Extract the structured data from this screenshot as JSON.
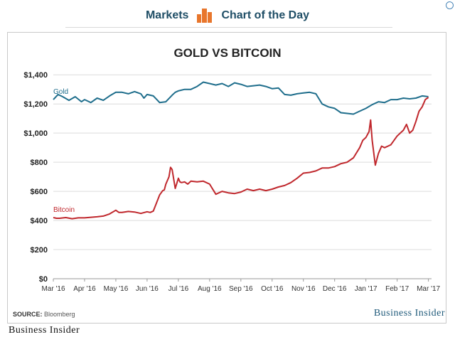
{
  "header": {
    "left_label": "Markets",
    "right_label": "Chart of the Day",
    "icon": "bar-chart-icon"
  },
  "source": {
    "prefix": "SOURCE:",
    "text": "Bloomberg"
  },
  "brand": {
    "inline": "Business Insider",
    "footer": "Business Insider"
  },
  "colors": {
    "gold": "#1f6e8c",
    "bitcoin": "#c0282d",
    "header_accent": "#e8762c"
  },
  "chart_data": {
    "type": "line",
    "title": "GOLD VS BITCOIN",
    "x_ticks": [
      "Mar '16",
      "Apr '16",
      "May '16",
      "Jun '16",
      "Jul '16",
      "Aug '16",
      "Sep '16",
      "Oct '16",
      "Nov '16",
      "Dec '16",
      "Jan '17",
      "Feb '17",
      "Mar '17"
    ],
    "y_ticks": [
      "$0",
      "$200",
      "$400",
      "$600",
      "$800",
      "$1,000",
      "$1,200",
      "$1,400"
    ],
    "ylim": [
      0,
      1450
    ],
    "xlim": [
      0,
      12.1
    ],
    "grid": true,
    "series": [
      {
        "name": "Gold",
        "color": "#1f6e8c",
        "x": [
          0,
          0.15,
          0.3,
          0.5,
          0.7,
          0.9,
          1.0,
          1.2,
          1.4,
          1.6,
          1.8,
          2.0,
          2.2,
          2.4,
          2.6,
          2.8,
          2.9,
          3.0,
          3.2,
          3.4,
          3.6,
          3.8,
          3.9,
          4.0,
          4.2,
          4.4,
          4.6,
          4.8,
          5.0,
          5.2,
          5.4,
          5.6,
          5.8,
          6.0,
          6.2,
          6.4,
          6.6,
          6.8,
          7.0,
          7.2,
          7.4,
          7.6,
          7.8,
          8.0,
          8.2,
          8.4,
          8.6,
          8.8,
          9.0,
          9.2,
          9.4,
          9.6,
          9.8,
          10.0,
          10.2,
          10.4,
          10.6,
          10.8,
          11.0,
          11.2,
          11.4,
          11.6,
          11.8,
          12.0
        ],
        "values": [
          1230,
          1265,
          1250,
          1225,
          1250,
          1215,
          1230,
          1210,
          1240,
          1225,
          1255,
          1280,
          1280,
          1270,
          1285,
          1270,
          1240,
          1265,
          1255,
          1210,
          1215,
          1260,
          1280,
          1290,
          1300,
          1300,
          1320,
          1350,
          1340,
          1330,
          1340,
          1320,
          1345,
          1335,
          1320,
          1325,
          1330,
          1320,
          1305,
          1310,
          1265,
          1260,
          1270,
          1275,
          1280,
          1270,
          1200,
          1180,
          1170,
          1140,
          1135,
          1130,
          1150,
          1170,
          1195,
          1215,
          1210,
          1230,
          1230,
          1240,
          1235,
          1240,
          1255,
          1250
        ]
      },
      {
        "name": "Bitcoin",
        "color": "#c0282d",
        "x": [
          0,
          0.1,
          0.2,
          0.4,
          0.6,
          0.8,
          1.0,
          1.2,
          1.4,
          1.6,
          1.8,
          2.0,
          2.1,
          2.2,
          2.4,
          2.6,
          2.8,
          3.0,
          3.1,
          3.2,
          3.3,
          3.4,
          3.5,
          3.55,
          3.6,
          3.7,
          3.75,
          3.8,
          3.9,
          4.0,
          4.05,
          4.1,
          4.2,
          4.3,
          4.4,
          4.6,
          4.8,
          5.0,
          5.2,
          5.4,
          5.6,
          5.8,
          6.0,
          6.2,
          6.4,
          6.6,
          6.8,
          7.0,
          7.2,
          7.4,
          7.6,
          7.8,
          8.0,
          8.2,
          8.4,
          8.6,
          8.8,
          9.0,
          9.2,
          9.4,
          9.6,
          9.8,
          9.9,
          10.0,
          10.1,
          10.15,
          10.2,
          10.3,
          10.4,
          10.5,
          10.6,
          10.8,
          11.0,
          11.2,
          11.3,
          11.4,
          11.5,
          11.6,
          11.7,
          11.8,
          11.9,
          12.0
        ],
        "values": [
          420,
          415,
          415,
          420,
          412,
          418,
          418,
          422,
          425,
          430,
          445,
          470,
          455,
          455,
          462,
          458,
          448,
          460,
          455,
          465,
          520,
          575,
          605,
          610,
          650,
          700,
          765,
          750,
          620,
          690,
          665,
          660,
          665,
          650,
          670,
          665,
          670,
          650,
          580,
          600,
          590,
          585,
          595,
          615,
          605,
          615,
          605,
          615,
          630,
          640,
          660,
          690,
          725,
          730,
          740,
          760,
          760,
          770,
          790,
          800,
          830,
          900,
          950,
          970,
          1010,
          1090,
          950,
          780,
          860,
          910,
          900,
          920,
          980,
          1020,
          1060,
          1000,
          1020,
          1080,
          1150,
          1180,
          1230,
          1245
        ]
      }
    ]
  }
}
